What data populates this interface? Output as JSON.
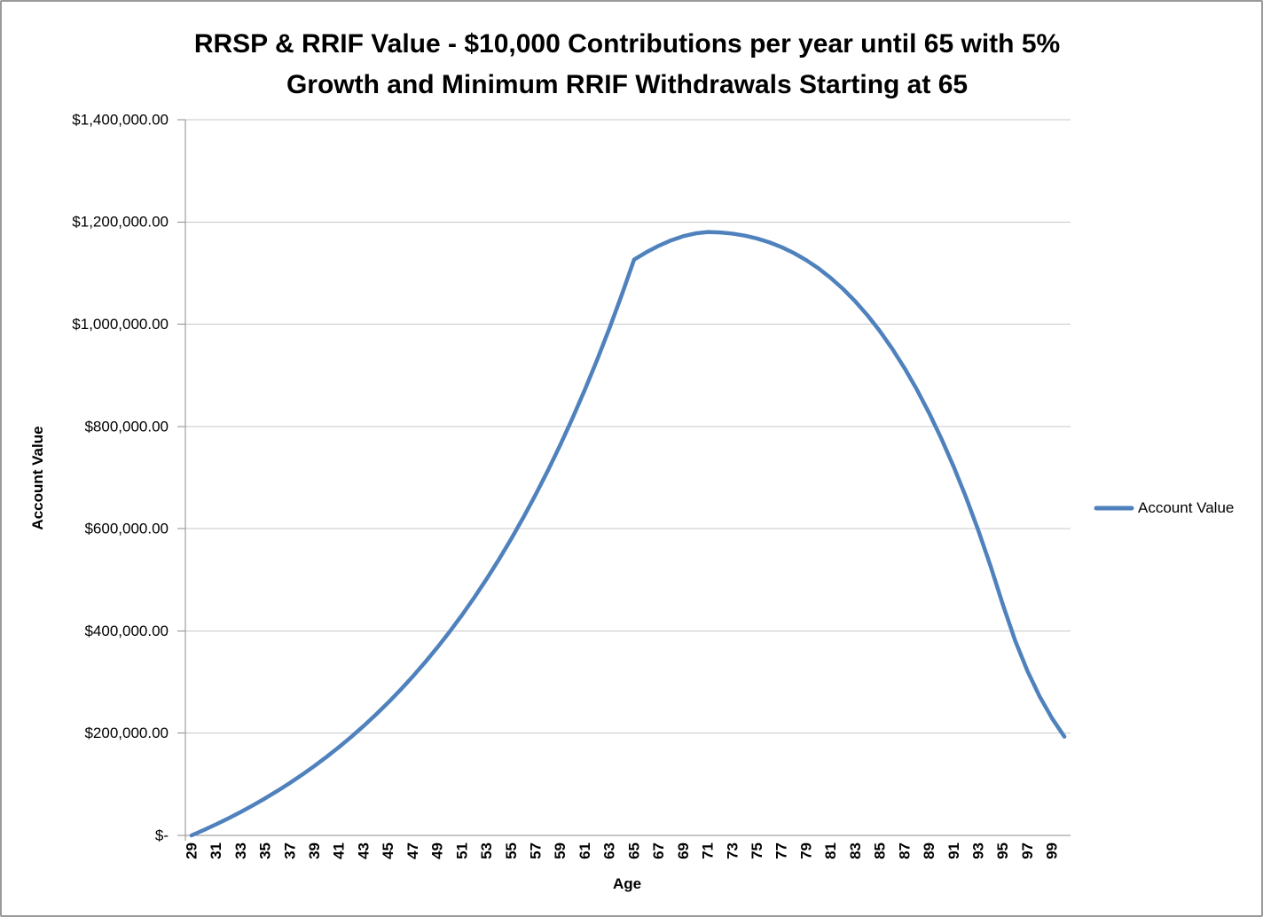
{
  "title": {
    "full": "RRSP & RRIF Value - $10,000 Contributions per year until 65 with 5% Growth and Minimum RRIF Withdrawals Starting at 65",
    "line1": "RRSP & RRIF Value - $10,000 Contributions per year until 65 with 5%",
    "line2": "Growth and Minimum RRIF Withdrawals Starting at 65"
  },
  "y_axis": {
    "title": "Account Value",
    "tick_labels": [
      "$-",
      "$200,000.00",
      "$400,000.00",
      "$600,000.00",
      "$800,000.00",
      "$1,000,000.00",
      "$1,200,000.00",
      "$1,400,000.00"
    ],
    "tick_values": [
      0,
      200000,
      400000,
      600000,
      800000,
      1000000,
      1200000,
      1400000
    ],
    "min": 0,
    "max": 1400000,
    "major_unit": 200000
  },
  "x_axis": {
    "title": "Age",
    "tick_labels": [
      "29",
      "31",
      "33",
      "35",
      "37",
      "39",
      "41",
      "43",
      "45",
      "47",
      "49",
      "51",
      "53",
      "55",
      "57",
      "59",
      "61",
      "63",
      "65",
      "67",
      "69",
      "71",
      "73",
      "75",
      "77",
      "79",
      "81",
      "83",
      "85",
      "87",
      "89",
      "91",
      "93",
      "95",
      "97",
      "99"
    ],
    "label_interval": 2
  },
  "legend": {
    "label": "Account Value",
    "position": "right"
  },
  "colors": {
    "series": "#4F81BD",
    "gridline": "#C8C8C8",
    "axis": "#8C8C8C",
    "text": "#000000",
    "background": "#FFFFFF",
    "frame_border": "#9A9A9A"
  },
  "chart_data": {
    "type": "line",
    "title": "RRSP & RRIF Value - $10,000 Contributions per year until 65 with 5% Growth and Minimum RRIF Withdrawals Starting at 65",
    "xlabel": "Age",
    "ylabel": "Account Value",
    "ylim": [
      0,
      1400000
    ],
    "y_major_unit": 200000,
    "x_tick_interval": 2,
    "grid": true,
    "legend_position": "right",
    "smooth": false,
    "x": [
      29,
      30,
      31,
      32,
      33,
      34,
      35,
      36,
      37,
      38,
      39,
      40,
      41,
      42,
      43,
      44,
      45,
      46,
      47,
      48,
      49,
      50,
      51,
      52,
      53,
      54,
      55,
      56,
      57,
      58,
      59,
      60,
      61,
      62,
      63,
      64,
      65,
      66,
      67,
      68,
      69,
      70,
      71,
      72,
      73,
      74,
      75,
      76,
      77,
      78,
      79,
      80,
      81,
      82,
      83,
      84,
      85,
      86,
      87,
      88,
      89,
      90,
      91,
      92,
      93,
      94,
      95,
      96,
      97,
      98,
      99,
      100
    ],
    "series": [
      {
        "name": "Account Value",
        "values": [
          0,
          10550,
          21680,
          33423,
          45811,
          58881,
          72669,
          87216,
          102563,
          118754,
          135835,
          153856,
          172868,
          192926,
          214087,
          236412,
          259964,
          284813,
          311027,
          338684,
          367861,
          398644,
          431119,
          465380,
          501526,
          539660,
          579891,
          622335,
          667114,
          714355,
          764194,
          816775,
          872248,
          930771,
          992514,
          1057652,
          1126373,
          1140791,
          1153385,
          1163916,
          1172122,
          1177701,
          1180351,
          1179525,
          1177201,
          1173269,
          1167614,
          1160141,
          1150755,
          1139144,
          1125360,
          1109132,
          1090333,
          1068862,
          1044428,
          1016918,
          986166,
          951868,
          913946,
          872133,
          826154,
          775809,
          720913,
          661236,
          596521,
          526500,
          451089,
          380719,
          321327,
          271200,
          228893,
          193186
        ]
      }
    ],
    "annotations": {
      "peak": {
        "age": 71,
        "value": 1180351
      },
      "value_at_65": 1126373,
      "value_at_100": 193186
    }
  }
}
